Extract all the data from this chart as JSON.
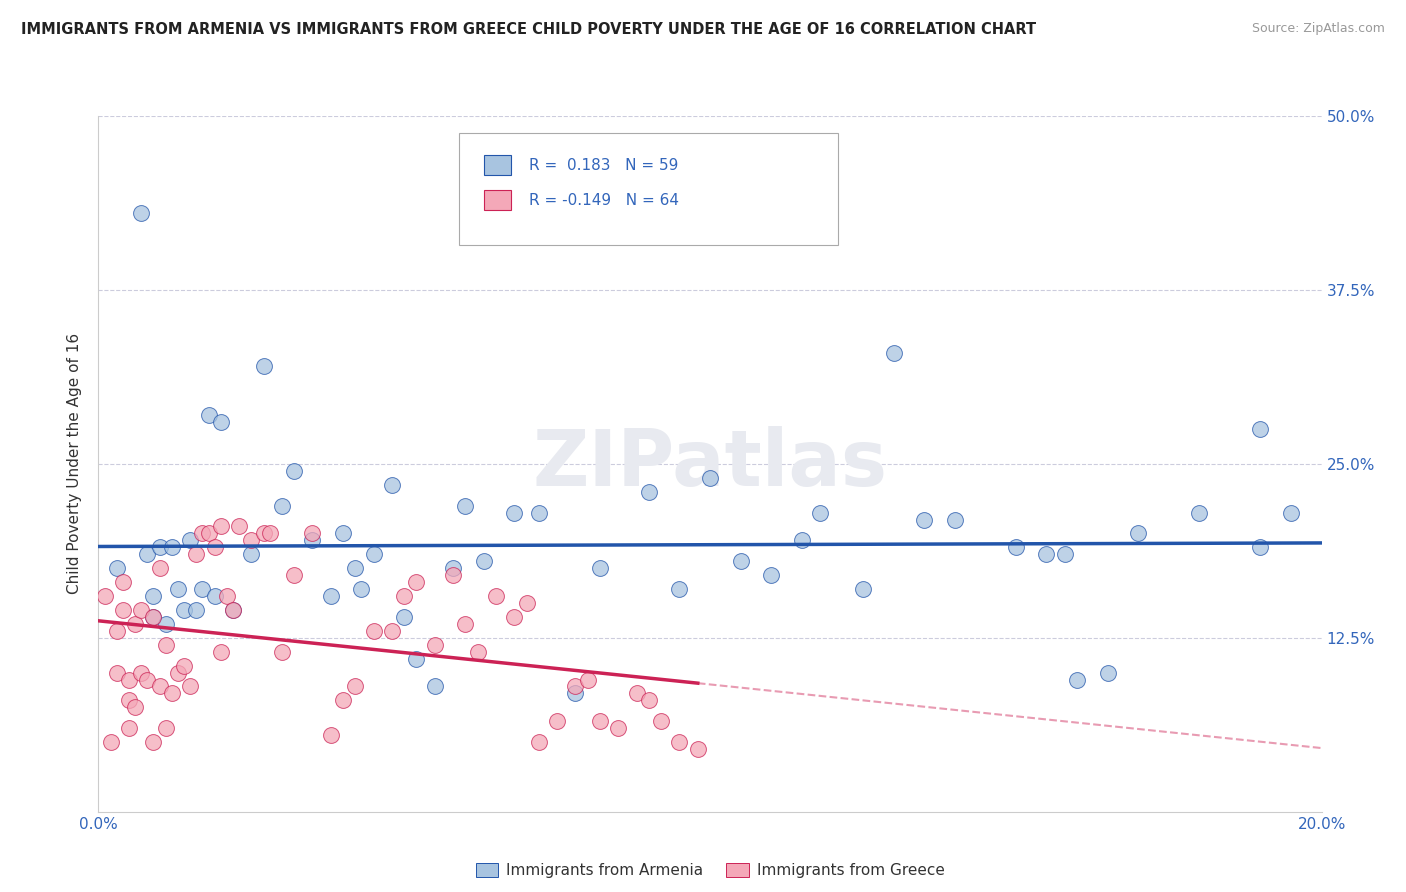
{
  "title": "IMMIGRANTS FROM ARMENIA VS IMMIGRANTS FROM GREECE CHILD POVERTY UNDER THE AGE OF 16 CORRELATION CHART",
  "source": "Source: ZipAtlas.com",
  "ylabel": "Child Poverty Under the Age of 16",
  "xlim": [
    0.0,
    0.2
  ],
  "ylim": [
    0.0,
    0.5
  ],
  "xticks": [
    0.0,
    0.05,
    0.1,
    0.15,
    0.2
  ],
  "xticklabels": [
    "0.0%",
    "",
    "",
    "",
    "20.0%"
  ],
  "yticks": [
    0.0,
    0.125,
    0.25,
    0.375,
    0.5
  ],
  "yticklabels_right": [
    "",
    "12.5%",
    "25.0%",
    "37.5%",
    "50.0%"
  ],
  "armenia_color": "#A8C4E0",
  "greece_color": "#F4A8B8",
  "armenia_R": 0.183,
  "armenia_N": 59,
  "greece_R": -0.149,
  "greece_N": 64,
  "armenia_line_color": "#2255AA",
  "greece_line_color": "#CC2255",
  "watermark": "ZIPatlas",
  "legend_label_armenia": "Immigrants from Armenia",
  "legend_label_greece": "Immigrants from Greece",
  "armenia_x": [
    0.003,
    0.007,
    0.008,
    0.009,
    0.009,
    0.01,
    0.011,
    0.012,
    0.013,
    0.014,
    0.015,
    0.016,
    0.017,
    0.018,
    0.019,
    0.02,
    0.022,
    0.025,
    0.027,
    0.03,
    0.032,
    0.035,
    0.038,
    0.04,
    0.042,
    0.043,
    0.045,
    0.048,
    0.05,
    0.052,
    0.055,
    0.058,
    0.06,
    0.063,
    0.068,
    0.072,
    0.078,
    0.082,
    0.09,
    0.095,
    0.1,
    0.105,
    0.11,
    0.115,
    0.118,
    0.125,
    0.13,
    0.135,
    0.14,
    0.15,
    0.155,
    0.158,
    0.16,
    0.165,
    0.17,
    0.18,
    0.19,
    0.19,
    0.195
  ],
  "armenia_y": [
    0.175,
    0.43,
    0.185,
    0.155,
    0.14,
    0.19,
    0.135,
    0.19,
    0.16,
    0.145,
    0.195,
    0.145,
    0.16,
    0.285,
    0.155,
    0.28,
    0.145,
    0.185,
    0.32,
    0.22,
    0.245,
    0.195,
    0.155,
    0.2,
    0.175,
    0.16,
    0.185,
    0.235,
    0.14,
    0.11,
    0.09,
    0.175,
    0.22,
    0.18,
    0.215,
    0.215,
    0.085,
    0.175,
    0.23,
    0.16,
    0.24,
    0.18,
    0.17,
    0.195,
    0.215,
    0.16,
    0.33,
    0.21,
    0.21,
    0.19,
    0.185,
    0.185,
    0.095,
    0.1,
    0.2,
    0.215,
    0.275,
    0.19,
    0.215
  ],
  "greece_x": [
    0.001,
    0.002,
    0.003,
    0.003,
    0.004,
    0.004,
    0.005,
    0.005,
    0.005,
    0.006,
    0.006,
    0.007,
    0.007,
    0.008,
    0.009,
    0.009,
    0.01,
    0.01,
    0.011,
    0.011,
    0.012,
    0.013,
    0.014,
    0.015,
    0.016,
    0.017,
    0.018,
    0.019,
    0.02,
    0.02,
    0.021,
    0.022,
    0.023,
    0.025,
    0.027,
    0.028,
    0.03,
    0.032,
    0.035,
    0.038,
    0.04,
    0.042,
    0.045,
    0.048,
    0.05,
    0.052,
    0.055,
    0.058,
    0.06,
    0.062,
    0.065,
    0.068,
    0.07,
    0.072,
    0.075,
    0.078,
    0.08,
    0.082,
    0.085,
    0.088,
    0.09,
    0.092,
    0.095,
    0.098
  ],
  "greece_y": [
    0.155,
    0.05,
    0.13,
    0.1,
    0.145,
    0.165,
    0.06,
    0.08,
    0.095,
    0.135,
    0.075,
    0.1,
    0.145,
    0.095,
    0.14,
    0.05,
    0.09,
    0.175,
    0.12,
    0.06,
    0.085,
    0.1,
    0.105,
    0.09,
    0.185,
    0.2,
    0.2,
    0.19,
    0.115,
    0.205,
    0.155,
    0.145,
    0.205,
    0.195,
    0.2,
    0.2,
    0.115,
    0.17,
    0.2,
    0.055,
    0.08,
    0.09,
    0.13,
    0.13,
    0.155,
    0.165,
    0.12,
    0.17,
    0.135,
    0.115,
    0.155,
    0.14,
    0.15,
    0.05,
    0.065,
    0.09,
    0.095,
    0.065,
    0.06,
    0.085,
    0.08,
    0.065,
    0.05,
    0.045
  ]
}
